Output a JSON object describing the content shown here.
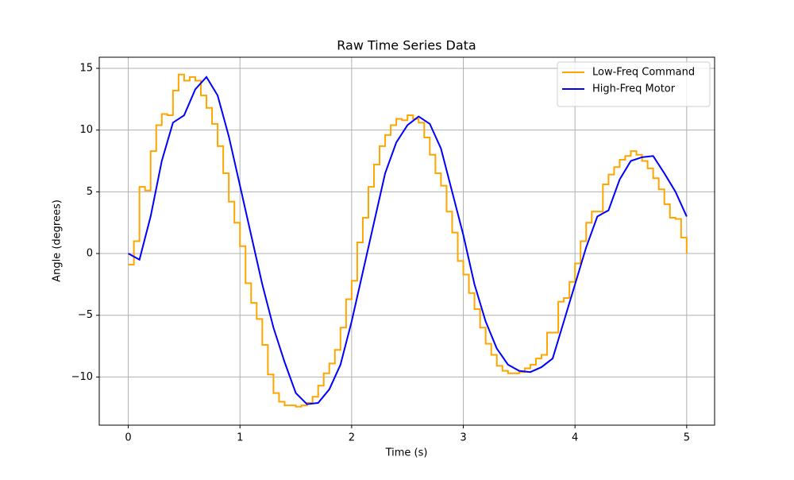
{
  "chart_data": {
    "type": "line",
    "title": "Raw Time Series Data",
    "x_label": "Time (s)",
    "y_label": "Angle (degrees)",
    "xlim": [
      -0.26,
      5.25
    ],
    "xticks": [
      0,
      1,
      2,
      3,
      4,
      5
    ],
    "ylim": [
      -13.9,
      15.9
    ],
    "yticks": [
      {
        "value": -10,
        "label": "−10"
      },
      {
        "value": -5,
        "label": "−5"
      },
      0,
      5,
      10,
      15
    ],
    "grid": true,
    "legend": "upper right",
    "series": [
      {
        "name": "Low-Freq Command",
        "color": "#ffa500",
        "step": true,
        "x": [
          0,
          0.05,
          0.1,
          0.15,
          0.2,
          0.25,
          0.3,
          0.35,
          0.4,
          0.45,
          0.5,
          0.55,
          0.6,
          0.65,
          0.7,
          0.75,
          0.8,
          0.85,
          0.9,
          0.95,
          1.0,
          1.05,
          1.1,
          1.15,
          1.2,
          1.25,
          1.3,
          1.35,
          1.4,
          1.45,
          1.5,
          1.55,
          1.6,
          1.65,
          1.7,
          1.75,
          1.8,
          1.85,
          1.9,
          1.95,
          2.0,
          2.05,
          2.1,
          2.15,
          2.2,
          2.25,
          2.3,
          2.35,
          2.4,
          2.45,
          2.5,
          2.55,
          2.6,
          2.65,
          2.7,
          2.75,
          2.8,
          2.85,
          2.9,
          2.95,
          3.0,
          3.05,
          3.1,
          3.15,
          3.2,
          3.25,
          3.3,
          3.35,
          3.4,
          3.45,
          3.5,
          3.55,
          3.6,
          3.65,
          3.7,
          3.75,
          3.8,
          3.85,
          3.9,
          3.95,
          4.0,
          4.05,
          4.1,
          4.15,
          4.2,
          4.25,
          4.3,
          4.35,
          4.4,
          4.45,
          4.5,
          4.55,
          4.6,
          4.65,
          4.7,
          4.75,
          4.8,
          4.85,
          4.9,
          4.95,
          5.0
        ],
        "values": [
          -0.9,
          1.0,
          5.4,
          5.1,
          8.3,
          10.4,
          11.3,
          11.2,
          13.2,
          14.5,
          14.0,
          14.3,
          14.0,
          12.8,
          11.8,
          10.5,
          8.7,
          6.5,
          4.2,
          2.5,
          0.6,
          -2.4,
          -4.0,
          -5.3,
          -7.4,
          -9.8,
          -11.3,
          -12.0,
          -12.3,
          -12.3,
          -12.4,
          -12.3,
          -12.1,
          -11.6,
          -10.7,
          -9.7,
          -8.9,
          -7.8,
          -6.0,
          -3.7,
          -2.2,
          0.9,
          2.9,
          5.4,
          7.2,
          8.7,
          9.6,
          10.4,
          10.9,
          10.8,
          11.2,
          10.9,
          10.6,
          9.4,
          8.0,
          6.5,
          5.5,
          3.4,
          1.7,
          -0.6,
          -1.7,
          -3.2,
          -4.5,
          -6.0,
          -7.3,
          -8.2,
          -9.1,
          -9.5,
          -9.7,
          -9.7,
          -9.6,
          -9.3,
          -9.0,
          -8.5,
          -8.2,
          -6.4,
          -6.4,
          -3.9,
          -3.6,
          -2.3,
          -0.8,
          1.0,
          2.5,
          3.4,
          3.4,
          5.6,
          6.4,
          7.0,
          7.6,
          7.9,
          8.3,
          8.0,
          7.5,
          6.9,
          6.1,
          5.2,
          4.0,
          2.9,
          2.8,
          1.3,
          0
        ]
      },
      {
        "name": "High-Freq Motor",
        "color": "#0000ff",
        "x": [
          0,
          0.1,
          0.2,
          0.3,
          0.4,
          0.5,
          0.6,
          0.7,
          0.8,
          0.9,
          1.0,
          1.1,
          1.2,
          1.3,
          1.4,
          1.5,
          1.6,
          1.7,
          1.8,
          1.9,
          2.0,
          2.1,
          2.2,
          2.3,
          2.4,
          2.5,
          2.6,
          2.7,
          2.8,
          2.9,
          3.0,
          3.1,
          3.2,
          3.3,
          3.4,
          3.5,
          3.6,
          3.7,
          3.8,
          3.9,
          4.0,
          4.1,
          4.2,
          4.3,
          4.4,
          4.5,
          4.6,
          4.7,
          4.8,
          4.9,
          5.0
        ],
        "values": [
          0,
          -0.5,
          3.0,
          7.5,
          10.6,
          11.2,
          13.3,
          14.3,
          12.8,
          9.5,
          5.5,
          1.5,
          -2.5,
          -6.0,
          -8.8,
          -11.3,
          -12.2,
          -12.1,
          -11.0,
          -9.0,
          -5.5,
          -1.5,
          2.5,
          6.5,
          9.0,
          10.4,
          11.1,
          10.5,
          8.5,
          5.0,
          1.5,
          -2.5,
          -5.5,
          -7.7,
          -9.0,
          -9.5,
          -9.6,
          -9.2,
          -8.5,
          -5.5,
          -2.5,
          0.5,
          3.0,
          3.5,
          6.0,
          7.5,
          7.8,
          7.9,
          6.5,
          5.0,
          3.0
        ]
      }
    ]
  }
}
